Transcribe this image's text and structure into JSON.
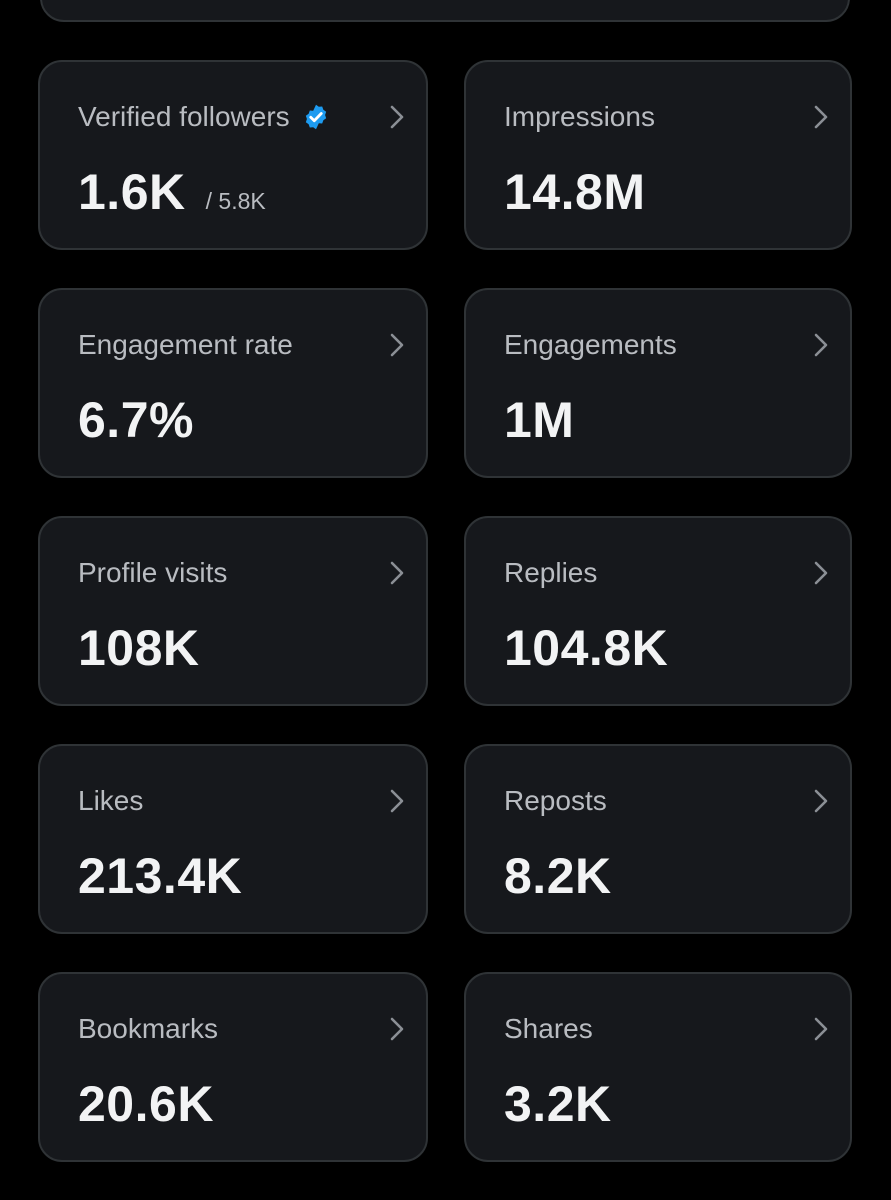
{
  "colors": {
    "background": "#000000",
    "card_background": "#16181c",
    "card_border": "#2f3336",
    "label": "#b9bcc1",
    "value": "#f2f3f4",
    "verified_badge": "#1d9bf0"
  },
  "metrics": [
    {
      "label": "Verified followers",
      "value": "1.6K",
      "subvalue": "/ 5.8K",
      "icon": "verified-badge-icon"
    },
    {
      "label": "Impressions",
      "value": "14.8M"
    },
    {
      "label": "Engagement rate",
      "value": "6.7%"
    },
    {
      "label": "Engagements",
      "value": "1M"
    },
    {
      "label": "Profile visits",
      "value": "108K"
    },
    {
      "label": "Replies",
      "value": "104.8K"
    },
    {
      "label": "Likes",
      "value": "213.4K"
    },
    {
      "label": "Reposts",
      "value": "8.2K"
    },
    {
      "label": "Bookmarks",
      "value": "20.6K"
    },
    {
      "label": "Shares",
      "value": "3.2K"
    }
  ]
}
